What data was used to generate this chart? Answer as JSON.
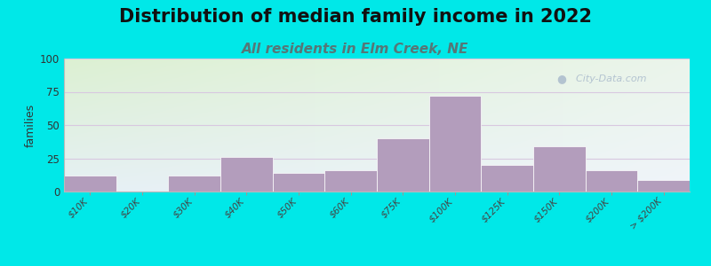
{
  "title": "Distribution of median family income in 2022",
  "subtitle": "All residents in Elm Creek, NE",
  "ylabel": "families",
  "categories": [
    "$10K",
    "$20K",
    "$30K",
    "$40K",
    "$50K",
    "$60K",
    "$75K",
    "$100K",
    "$125K",
    "$150K",
    "$200K",
    "> $200K"
  ],
  "values": [
    12,
    0,
    12,
    26,
    14,
    16,
    40,
    72,
    20,
    34,
    16,
    9
  ],
  "bar_color": "#b39dbc",
  "bar_edge_color": "#c8b4d0",
  "ylim": [
    0,
    100
  ],
  "yticks": [
    0,
    25,
    50,
    75,
    100
  ],
  "background_outer": "#00e8e8",
  "background_inner_topleft": [
    220,
    240,
    210
  ],
  "background_inner_topright": [
    235,
    245,
    235
  ],
  "background_inner_bottomleft": [
    230,
    240,
    245
  ],
  "background_inner_bottomright": [
    240,
    245,
    250
  ],
  "grid_color": "#d8c8e0",
  "title_fontsize": 15,
  "subtitle_fontsize": 11,
  "subtitle_color": "#557777",
  "watermark_text": "City-Data.com",
  "watermark_color": "#aabbcc",
  "watermark_icon": "●"
}
